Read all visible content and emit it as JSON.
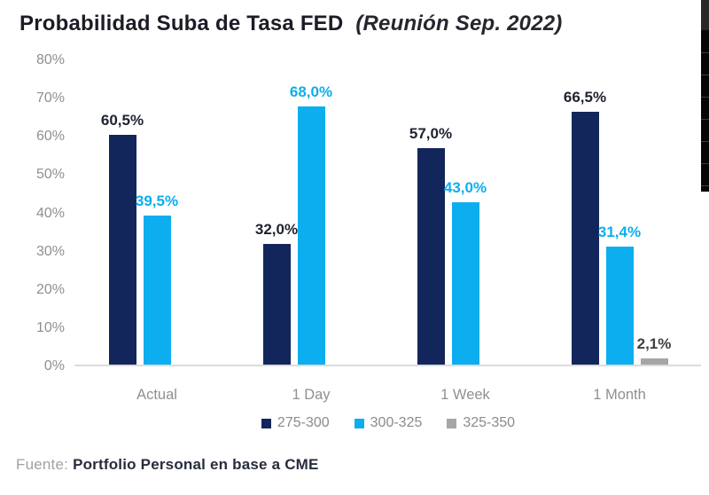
{
  "title": {
    "main": "Probabilidad Suba de Tasa FED",
    "sub": "(Reunión Sep. 2022)"
  },
  "source": {
    "prefix": "Fuente:",
    "text": "Portfolio Personal en base a CME"
  },
  "chart_data": {
    "type": "bar",
    "title": "Probabilidad Suba de Tasa FED (Reunión Sep. 2022)",
    "categories": [
      "Actual",
      "1 Day",
      "1 Week",
      "1 Month"
    ],
    "series": [
      {
        "name": "275-300",
        "color": "#13265c",
        "label_color": "#1e2230",
        "values": [
          60.5,
          32.0,
          57.0,
          66.5
        ],
        "labels": [
          "60,5%",
          "32,0%",
          "57,0%",
          "66,5%"
        ]
      },
      {
        "name": "300-325",
        "color": "#0caeef",
        "label_color": "#0caeef",
        "values": [
          39.5,
          68.0,
          43.0,
          31.4
        ],
        "labels": [
          "39,5%",
          "68,0%",
          "43,0%",
          "31,4%"
        ]
      },
      {
        "name": "325-350",
        "color": "#a6a6a6",
        "label_color": "#3f3f3f",
        "values": [
          null,
          null,
          null,
          2.1
        ],
        "labels": [
          null,
          null,
          null,
          "2,1%"
        ]
      }
    ],
    "xlabel": "",
    "ylabel": "",
    "ylim": [
      0,
      80
    ],
    "ytick_step": 10,
    "yticks": [
      "80%",
      "70%",
      "60%",
      "50%",
      "40%",
      "30%",
      "20%",
      "10%",
      "0%"
    ],
    "grid": false,
    "legend_position": "bottom",
    "value_labels": true
  }
}
